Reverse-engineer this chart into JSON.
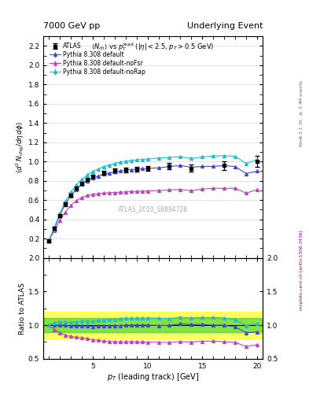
{
  "title_left": "7000 GeV pp",
  "title_right": "Underlying Event",
  "subtitle": "<N_{ch}> vs p_T^{lead} (|#eta| < 2.5, p_T > 0.5 GeV)",
  "watermark": "ATLAS_2010_S8894728",
  "ylabel_main": "\\langle d^2 N_{chg}/d\\eta d\\phi \\rangle",
  "ylabel_ratio": "Ratio to ATLAS",
  "xlabel": "p_T (leading track) [GeV]",
  "ylim_main": [
    0.0,
    2.3
  ],
  "ylim_ratio": [
    0.5,
    2.0
  ],
  "yticks_main": [
    0.2,
    0.4,
    0.6,
    0.8,
    1.0,
    1.2,
    1.4,
    1.6,
    1.8,
    2.0,
    2.2
  ],
  "yticks_ratio": [
    0.5,
    1.0,
    1.5,
    2.0
  ],
  "xlim": [
    0.5,
    20.5
  ],
  "xticks": [
    5,
    10,
    15,
    20
  ],
  "atlas_x": [
    1.0,
    1.5,
    2.0,
    2.5,
    3.0,
    3.5,
    4.0,
    4.5,
    5.0,
    6.0,
    7.0,
    8.0,
    9.0,
    10.0,
    12.0,
    14.0,
    17.0,
    20.0
  ],
  "atlas_y": [
    0.175,
    0.305,
    0.44,
    0.558,
    0.654,
    0.722,
    0.773,
    0.812,
    0.843,
    0.88,
    0.903,
    0.912,
    0.921,
    0.929,
    0.952,
    0.932,
    0.96,
    1.002
  ],
  "atlas_err": [
    0.018,
    0.018,
    0.018,
    0.018,
    0.018,
    0.018,
    0.018,
    0.018,
    0.018,
    0.02,
    0.022,
    0.024,
    0.026,
    0.028,
    0.032,
    0.038,
    0.045,
    0.055
  ],
  "default_x": [
    1.0,
    1.5,
    2.0,
    2.5,
    3.0,
    3.5,
    4.0,
    4.5,
    5.0,
    5.5,
    6.0,
    6.5,
    7.0,
    7.5,
    8.0,
    8.5,
    9.0,
    9.5,
    10.0,
    11.0,
    12.0,
    13.0,
    14.0,
    15.0,
    16.0,
    17.0,
    18.0,
    19.0,
    20.0
  ],
  "default_y": [
    0.175,
    0.305,
    0.44,
    0.558,
    0.645,
    0.712,
    0.763,
    0.8,
    0.828,
    0.85,
    0.868,
    0.882,
    0.893,
    0.902,
    0.91,
    0.916,
    0.921,
    0.925,
    0.929,
    0.935,
    0.948,
    0.959,
    0.941,
    0.95,
    0.95,
    0.958,
    0.948,
    0.875,
    0.9
  ],
  "default_err": [
    0.003,
    0.003,
    0.003,
    0.003,
    0.003,
    0.003,
    0.003,
    0.003,
    0.003,
    0.003,
    0.003,
    0.003,
    0.003,
    0.003,
    0.003,
    0.003,
    0.003,
    0.003,
    0.003,
    0.003,
    0.003,
    0.003,
    0.003,
    0.003,
    0.003,
    0.003,
    0.004,
    0.008,
    0.01
  ],
  "nofsr_x": [
    1.0,
    1.5,
    2.0,
    2.5,
    3.0,
    3.5,
    4.0,
    4.5,
    5.0,
    5.5,
    6.0,
    6.5,
    7.0,
    7.5,
    8.0,
    8.5,
    9.0,
    9.5,
    10.0,
    11.0,
    12.0,
    13.0,
    14.0,
    15.0,
    16.0,
    17.0,
    18.0,
    19.0,
    20.0
  ],
  "nofsr_y": [
    0.175,
    0.284,
    0.39,
    0.475,
    0.543,
    0.593,
    0.626,
    0.648,
    0.66,
    0.667,
    0.672,
    0.676,
    0.679,
    0.682,
    0.685,
    0.688,
    0.691,
    0.693,
    0.695,
    0.7,
    0.705,
    0.71,
    0.697,
    0.715,
    0.723,
    0.722,
    0.723,
    0.672,
    0.71
  ],
  "nofsr_err": [
    0.003,
    0.003,
    0.003,
    0.003,
    0.003,
    0.003,
    0.003,
    0.003,
    0.003,
    0.003,
    0.003,
    0.003,
    0.003,
    0.003,
    0.003,
    0.003,
    0.003,
    0.003,
    0.003,
    0.003,
    0.003,
    0.003,
    0.003,
    0.003,
    0.003,
    0.003,
    0.004,
    0.008,
    0.01
  ],
  "norap_x": [
    1.0,
    1.5,
    2.0,
    2.5,
    3.0,
    3.5,
    4.0,
    4.5,
    5.0,
    5.5,
    6.0,
    6.5,
    7.0,
    7.5,
    8.0,
    8.5,
    9.0,
    9.5,
    10.0,
    11.0,
    12.0,
    13.0,
    14.0,
    15.0,
    16.0,
    17.0,
    18.0,
    19.0,
    20.0
  ],
  "norap_y": [
    0.175,
    0.315,
    0.46,
    0.585,
    0.68,
    0.759,
    0.816,
    0.86,
    0.895,
    0.922,
    0.947,
    0.965,
    0.98,
    0.992,
    1.003,
    1.01,
    1.017,
    1.022,
    1.027,
    1.036,
    1.044,
    1.051,
    1.032,
    1.048,
    1.057,
    1.062,
    1.053,
    0.98,
    1.022
  ],
  "norap_err": [
    0.003,
    0.003,
    0.003,
    0.003,
    0.003,
    0.003,
    0.003,
    0.003,
    0.003,
    0.003,
    0.003,
    0.003,
    0.003,
    0.003,
    0.003,
    0.003,
    0.003,
    0.003,
    0.003,
    0.003,
    0.003,
    0.003,
    0.003,
    0.003,
    0.003,
    0.003,
    0.004,
    0.008,
    0.01
  ],
  "green_band_lo": 0.9,
  "green_band_hi": 1.1,
  "yellow_band_lo": 0.8,
  "yellow_band_hi": 1.2,
  "color_default": "#4444dd",
  "color_nofsr": "#bb44bb",
  "color_norap": "#22bbcc",
  "color_atlas": "black"
}
